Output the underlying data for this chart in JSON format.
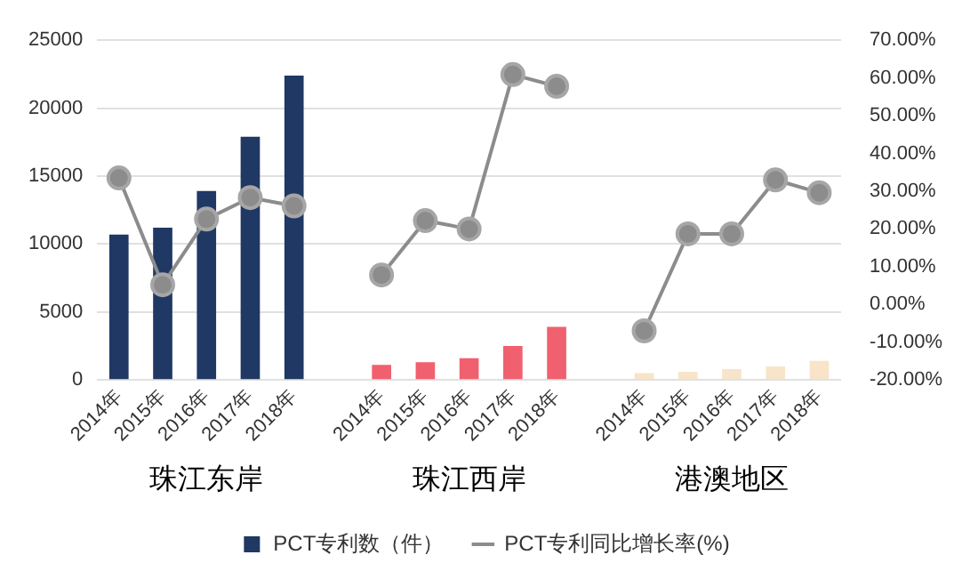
{
  "chart_data": {
    "type": "bar",
    "categories": [
      "2014年",
      "2015年",
      "2016年",
      "2017年",
      "2018年",
      null,
      "2014年",
      "2015年",
      "2016年",
      "2017年",
      "2018年",
      null,
      "2014年",
      "2015年",
      "2016年",
      "2017年",
      "2018年"
    ],
    "series": [
      {
        "name": "PCT专利数（件）",
        "color": "#203864",
        "colors": [
          "#203864",
          "#203864",
          "#203864",
          "#203864",
          "#203864",
          null,
          "#f0606e",
          "#f0606e",
          "#f0606e",
          "#f0606e",
          "#f0606e",
          null,
          "#f8e4c8",
          "#f8e4c8",
          "#f8e4c8",
          "#f8e4c8",
          "#f8e4c8"
        ],
        "values": [
          10700,
          11200,
          13900,
          17900,
          22400,
          null,
          1100,
          1300,
          1600,
          2500,
          3900,
          null,
          500,
          600,
          800,
          1000,
          1400
        ]
      },
      {
        "name": "PCT专利同比增长率(%)",
        "type": "line",
        "axis": "y2",
        "color": "#8c8c8c",
        "marker": "circle",
        "line_style": "solid",
        "values": [
          33.5,
          5.2,
          22.6,
          28.3,
          26.1,
          null,
          7.8,
          22.2,
          20,
          60.9,
          57.8,
          null,
          -7,
          18.7,
          18.7,
          33,
          29.6
        ]
      }
    ],
    "annotations": [
      "珠江东岸",
      "珠江西岸",
      "港澳地区"
    ],
    "ylim": [
      0,
      25000
    ],
    "yticks": [
      0,
      5000,
      10000,
      15000,
      20000,
      25000
    ],
    "y2lim": [
      -20,
      70
    ],
    "y2ticks": [
      {
        "value": -20,
        "label": "-20.00%"
      },
      {
        "value": -10,
        "label": "-10.00%"
      },
      {
        "value": 0,
        "label": "0.00%"
      },
      {
        "value": 10,
        "label": "10.00%"
      },
      {
        "value": 20,
        "label": "20.00%"
      },
      {
        "value": 30,
        "label": "30.00%"
      },
      {
        "value": 40,
        "label": "40.00%"
      },
      {
        "value": 50,
        "label": "50.00%"
      },
      {
        "value": 60,
        "label": "60.00%"
      },
      {
        "value": 70,
        "label": "70.00%"
      }
    ],
    "grid": "y",
    "legend": "bottom"
  }
}
